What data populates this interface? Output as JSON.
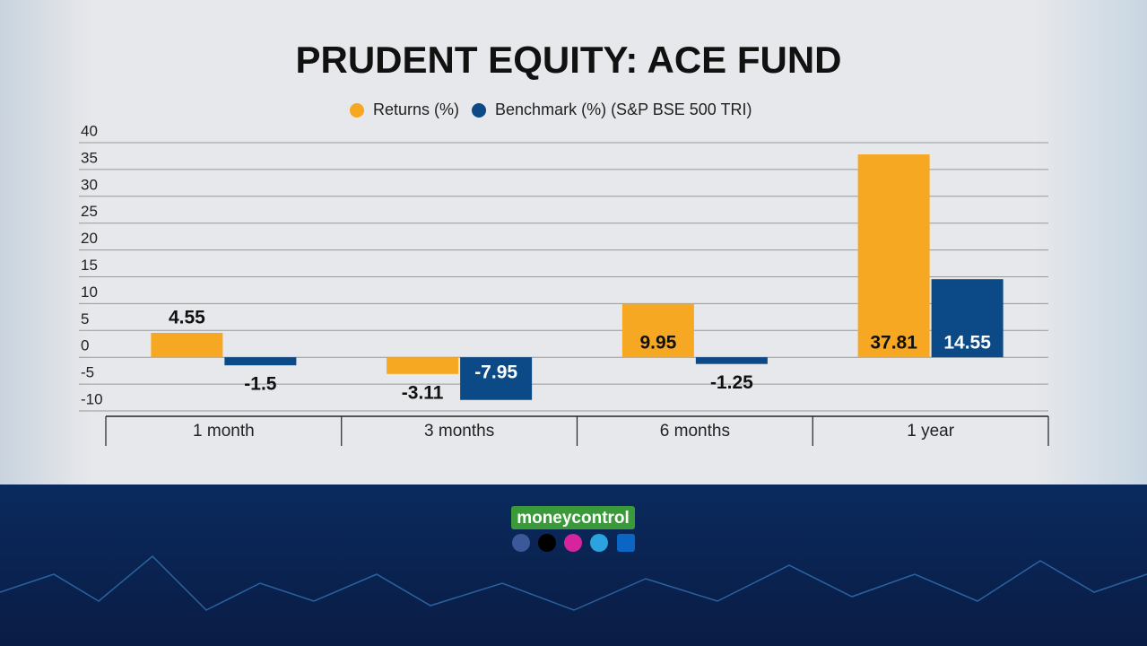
{
  "chart_data": {
    "type": "bar",
    "title": "PRUDENT EQUITY: ACE FUND",
    "categories": [
      "1 month",
      "3 months",
      "6 months",
      "1 year"
    ],
    "series": [
      {
        "name": "Returns (%)",
        "color": "#f7a823",
        "values": [
          4.55,
          -3.11,
          9.95,
          37.81
        ]
      },
      {
        "name": "Benchmark (%) (S&P BSE 500 TRI)",
        "color": "#0b4a86",
        "values": [
          -1.5,
          -7.95,
          -1.25,
          14.55
        ]
      }
    ],
    "ylim": [
      -10,
      40
    ],
    "yticks": [
      -10,
      -5,
      0,
      5,
      10,
      15,
      20,
      25,
      30,
      35,
      40
    ],
    "grid": true
  },
  "footer": {
    "logo": "moneycontrol"
  }
}
